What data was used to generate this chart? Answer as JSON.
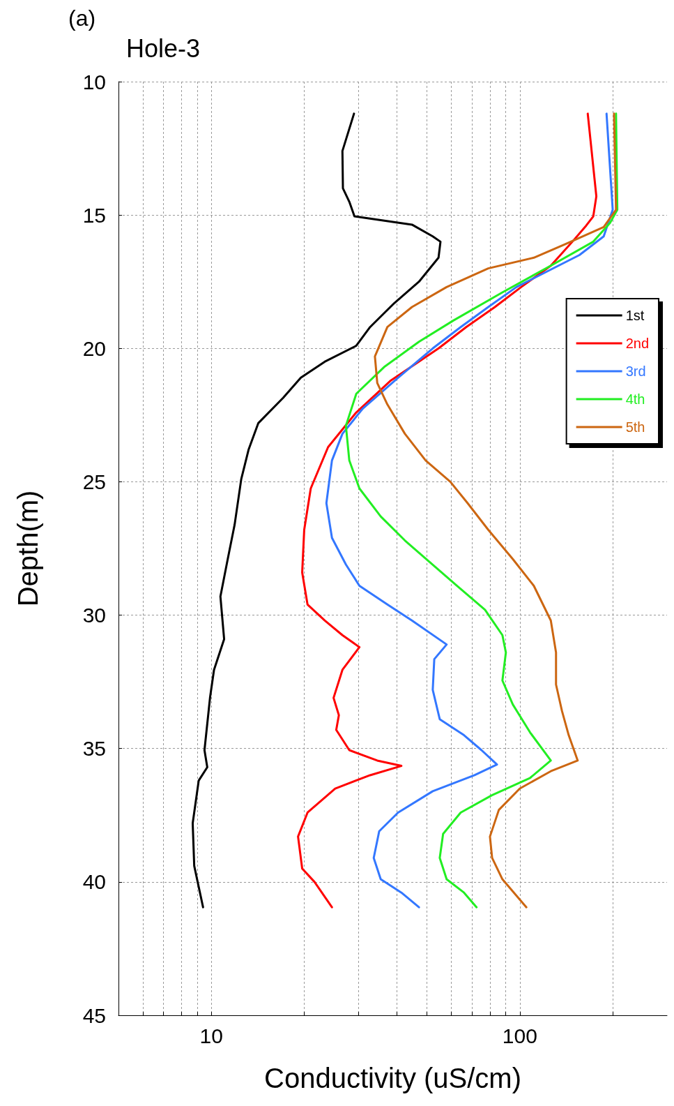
{
  "chart_data": {
    "type": "line",
    "title": "Hole-3",
    "annotations": [
      "(a)"
    ],
    "xlabel": "Conductivity (uS/cm)",
    "ylabel": "Depth(m)",
    "log": "x",
    "xlim": [
      5,
      300
    ],
    "xticks": [
      {
        "value": 6,
        "label": null
      },
      {
        "value": 7,
        "label": null
      },
      {
        "value": 8,
        "label": null
      },
      {
        "value": 9,
        "label": null
      },
      10,
      {
        "value": 20,
        "label": null
      },
      {
        "value": 30,
        "label": null
      },
      {
        "value": 40,
        "label": null
      },
      {
        "value": 50,
        "label": null
      },
      {
        "value": 60,
        "label": null
      },
      {
        "value": 70,
        "label": null
      },
      {
        "value": 80,
        "label": null
      },
      {
        "value": 90,
        "label": null
      },
      100,
      {
        "value": 200,
        "label": null
      }
    ],
    "ylim": [
      45,
      10
    ],
    "yticks": [
      10,
      15,
      20,
      25,
      30,
      35,
      40,
      45
    ],
    "grid": true,
    "legend": "top right",
    "marker": "none",
    "line_style": "solid",
    "series": [
      {
        "name": "1st",
        "color": "#000000",
        "x": [
          29.0,
          26.6,
          26.7,
          28.0,
          29.1,
          44.7,
          52.2,
          55.3,
          54.5,
          47.1,
          39.2,
          32.7,
          29.5,
          23.3,
          19.5,
          17.1,
          14.2,
          13.2,
          12.5,
          11.9,
          11.3,
          10.7,
          11.0,
          10.2,
          9.9,
          9.5,
          9.7,
          9.1,
          8.7,
          8.8,
          9.4
        ],
        "values": [
          11.2,
          12.6,
          14.0,
          14.5,
          15.05,
          15.36,
          15.8,
          16.0,
          16.6,
          17.5,
          18.3,
          19.2,
          19.9,
          20.5,
          21.1,
          21.85,
          22.8,
          23.8,
          24.9,
          26.6,
          27.9,
          29.3,
          30.9,
          32.05,
          33.1,
          35.06,
          35.7,
          36.2,
          37.8,
          39.4,
          40.95
        ]
      },
      {
        "name": "2nd",
        "color": "#ff0000",
        "x": [
          166,
          177,
          173,
          164,
          148,
          126,
          101,
          83,
          67,
          54.5,
          38.2,
          29.5,
          23.9,
          21.0,
          20.0,
          19.7,
          20.5,
          23.3,
          26.6,
          30.2,
          26.6,
          24.9,
          25.9,
          25.4,
          28.0,
          34.5,
          41.3,
          32.7,
          25.2,
          20.5,
          19.1,
          19.7,
          21.6,
          24.6
        ],
        "values": [
          11.2,
          14.3,
          15.05,
          15.4,
          16.0,
          16.9,
          17.7,
          18.45,
          19.2,
          20.0,
          21.2,
          22.4,
          23.7,
          25.25,
          26.8,
          28.4,
          29.6,
          30.2,
          30.75,
          31.2,
          32.05,
          33.1,
          33.75,
          34.3,
          35.06,
          35.45,
          35.65,
          36.0,
          36.5,
          37.4,
          38.3,
          39.5,
          40.0,
          40.95
        ]
      },
      {
        "name": "3rd",
        "color": "#3377ff",
        "x": [
          191,
          200,
          187,
          156,
          97.5,
          79,
          64.3,
          52.2,
          40.3,
          31.0,
          26.6,
          24.6,
          23.6,
          24.6,
          27.3,
          30.2,
          37.2,
          44.7,
          57.9,
          52.8,
          52.2,
          55.0,
          65.9,
          75.1,
          84.3,
          71.3,
          52.2,
          40.3,
          35.0,
          33.6,
          35.4,
          41.3,
          47.1
        ],
        "values": [
          11.2,
          14.8,
          15.8,
          16.5,
          17.7,
          18.45,
          19.2,
          20.0,
          21.1,
          22.25,
          23.2,
          24.2,
          25.8,
          27.1,
          28.1,
          28.9,
          29.6,
          30.2,
          31.1,
          31.65,
          32.8,
          33.9,
          34.5,
          35.06,
          35.6,
          36.0,
          36.6,
          37.4,
          38.1,
          39.1,
          39.9,
          40.4,
          40.95
        ]
      },
      {
        "name": "4th",
        "color": "#22ee22",
        "x": [
          205,
          207,
          196,
          173,
          126,
          87.8,
          61.0,
          47.1,
          36.3,
          29.5,
          27.3,
          28.0,
          30.2,
          35.4,
          42.4,
          50.9,
          62.6,
          77.1,
          87.8,
          90.1,
          87.8,
          94.9,
          108,
          126,
          108,
          81.2,
          64.3,
          56.4,
          55.0,
          57.9,
          65.9,
          72.4
        ],
        "values": [
          11.2,
          14.8,
          15.3,
          16.0,
          16.9,
          17.9,
          18.95,
          19.75,
          20.7,
          21.7,
          22.9,
          24.2,
          25.25,
          26.3,
          27.2,
          28.0,
          28.9,
          29.8,
          30.75,
          31.4,
          32.45,
          33.35,
          34.4,
          35.45,
          36.1,
          36.75,
          37.4,
          38.2,
          39.1,
          39.9,
          40.4,
          40.95
        ]
      },
      {
        "name": "5th",
        "color": "#cc6611",
        "x": [
          202,
          205,
          187,
          140,
          111,
          79,
          57.9,
          44.7,
          37.2,
          33.9,
          34.5,
          37.2,
          42.4,
          49.5,
          59.5,
          67.7,
          79,
          94.9,
          111,
          126,
          131,
          131,
          137,
          144,
          154,
          126,
          100,
          85.5,
          80,
          81.3,
          87.8,
          105
        ],
        "values": [
          11.2,
          14.8,
          15.45,
          16.1,
          16.6,
          17.0,
          17.7,
          18.45,
          19.2,
          20.3,
          21.3,
          22.1,
          23.2,
          24.2,
          25.0,
          25.8,
          26.8,
          27.9,
          28.9,
          30.2,
          31.4,
          32.6,
          33.6,
          34.5,
          35.45,
          35.85,
          36.5,
          37.3,
          38.3,
          39.1,
          39.9,
          40.95
        ]
      }
    ]
  }
}
